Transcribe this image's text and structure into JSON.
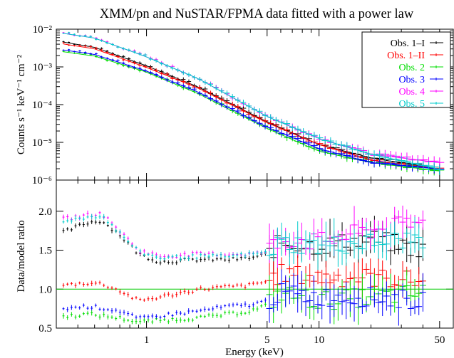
{
  "chart_data": [
    {
      "panel": "top",
      "type": "scatter",
      "title": "XMM/pn and NuSTAR/FPMA data fitted with a power law",
      "ylabel": "Counts s⁻¹ keV⁻¹ cm⁻²",
      "xscale": "log",
      "yscale": "log",
      "xlim": [
        0.3,
        60
      ],
      "ylim": [
        1e-06,
        0.01
      ],
      "y_ticks": [
        "10⁻⁶",
        "10⁻⁵",
        "10⁻⁴",
        "10⁻³",
        "10⁻²"
      ],
      "legend_position": "top-right",
      "series": [
        {
          "name": "Obs. 1–I",
          "color": "#000000",
          "x": [
            0.33,
            0.5,
            1,
            2,
            5,
            10,
            20,
            50
          ],
          "y": [
            0.0047,
            0.0034,
            0.0011,
            0.0003,
            3.6e-05,
            9e-06,
            4e-06,
            2e-06
          ]
        },
        {
          "name": "Obs. 1–II",
          "color": "#ff0000",
          "x": [
            0.33,
            0.5,
            1,
            2,
            5,
            10,
            20,
            50
          ],
          "y": [
            0.0042,
            0.0031,
            0.001,
            0.00028,
            3.4e-05,
            9e-06,
            3.5e-06,
            2e-06
          ]
        },
        {
          "name": "Obs. 2",
          "color": "#00dd00",
          "x": [
            0.33,
            0.5,
            1,
            2,
            5,
            10,
            20,
            50
          ],
          "y": [
            0.0026,
            0.002,
            0.00075,
            0.0002,
            2.4e-05,
            6e-06,
            3e-06,
            1.8e-06
          ]
        },
        {
          "name": "Obs. 3",
          "color": "#0000ff",
          "x": [
            0.33,
            0.5,
            1,
            2,
            5,
            10,
            20,
            50
          ],
          "y": [
            0.0029,
            0.0022,
            0.0008,
            0.00022,
            2.6e-05,
            7e-06,
            3e-06,
            2e-06
          ]
        },
        {
          "name": "Obs. 4",
          "color": "#ff00ff",
          "x": [
            0.33,
            0.5,
            1,
            2,
            5,
            10,
            20,
            50
          ],
          "y": [
            0.008,
            0.006,
            0.0019,
            0.0005,
            5e-05,
            1.3e-05,
            5e-06,
            3e-06
          ]
        },
        {
          "name": "Obs. 5",
          "color": "#00cccc",
          "x": [
            0.33,
            0.5,
            1,
            2,
            5,
            10,
            20,
            50
          ],
          "y": [
            0.008,
            0.006,
            0.0019,
            0.0005,
            5e-05,
            1.3e-05,
            5e-06,
            2e-06
          ]
        }
      ]
    },
    {
      "panel": "bottom",
      "type": "scatter",
      "xlabel": "Energy (keV)",
      "ylabel": "Data/model ratio",
      "xscale": "log",
      "xlim": [
        0.3,
        60
      ],
      "ylim": [
        0.5,
        2.4
      ],
      "x_ticks": [
        1,
        5,
        10,
        50
      ],
      "y_ticks": [
        "0.5",
        "1.0",
        "1.5",
        "2.0"
      ],
      "reference_line": 1.0,
      "series": [
        {
          "name": "Obs. 1–I",
          "color": "#000000",
          "x": [
            0.33,
            0.45,
            0.55,
            0.7,
            0.9,
            1.2,
            2,
            3,
            4,
            5,
            6,
            10,
            20,
            40
          ],
          "y": [
            1.73,
            1.85,
            1.88,
            1.7,
            1.45,
            1.35,
            1.38,
            1.38,
            1.4,
            1.45,
            1.6,
            1.55,
            1.65,
            1.5
          ]
        },
        {
          "name": "Obs. 1–II",
          "color": "#ff0000",
          "x": [
            0.33,
            0.45,
            0.55,
            0.7,
            0.9,
            1.2,
            2,
            3,
            4,
            5,
            6,
            10,
            20,
            40
          ],
          "y": [
            1.05,
            1.08,
            1.07,
            0.98,
            0.85,
            0.9,
            1.0,
            1.03,
            1.05,
            1.1,
            1.2,
            1.15,
            1.15,
            1.1
          ]
        },
        {
          "name": "Obs. 2",
          "color": "#00dd00",
          "x": [
            0.33,
            0.45,
            0.55,
            0.7,
            0.9,
            1.2,
            2,
            3,
            4,
            5,
            6,
            10,
            20,
            40
          ],
          "y": [
            0.65,
            0.68,
            0.66,
            0.63,
            0.58,
            0.6,
            0.63,
            0.68,
            0.72,
            0.8,
            0.95,
            0.85,
            0.9,
            0.95
          ]
        },
        {
          "name": "Obs. 3",
          "color": "#0000ff",
          "x": [
            0.33,
            0.45,
            0.55,
            0.7,
            0.9,
            1.2,
            2,
            3,
            4,
            5,
            6,
            10,
            20,
            40
          ],
          "y": [
            0.75,
            0.78,
            0.76,
            0.72,
            0.62,
            0.66,
            0.72,
            0.78,
            0.8,
            0.85,
            0.95,
            0.9,
            0.9,
            0.85
          ]
        },
        {
          "name": "Obs. 4",
          "color": "#ff00ff",
          "x": [
            0.33,
            0.45,
            0.55,
            0.7,
            0.9,
            1.2,
            2,
            3,
            4,
            5,
            6,
            10,
            20,
            40
          ],
          "y": [
            1.9,
            1.95,
            1.97,
            1.75,
            1.5,
            1.42,
            1.45,
            1.45,
            1.45,
            1.48,
            1.65,
            1.6,
            1.75,
            1.85
          ]
        },
        {
          "name": "Obs. 5",
          "color": "#00cccc",
          "x": [
            0.33,
            0.45,
            0.55,
            0.7,
            0.9,
            1.2,
            2,
            3,
            4,
            5,
            6,
            10,
            20,
            40
          ],
          "y": [
            1.88,
            1.92,
            1.95,
            1.72,
            1.48,
            1.4,
            1.42,
            1.42,
            1.45,
            1.47,
            1.6,
            1.55,
            1.6,
            1.65
          ]
        }
      ]
    }
  ]
}
